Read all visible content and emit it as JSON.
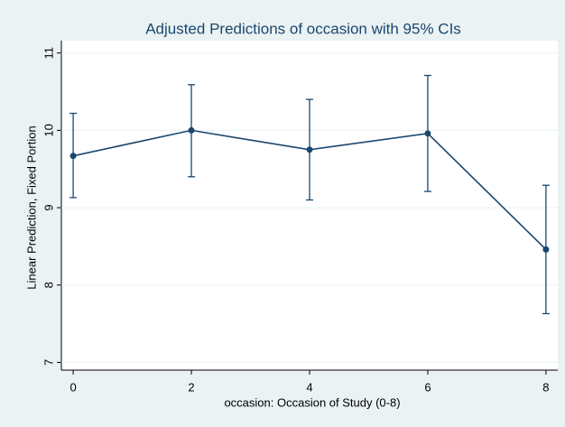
{
  "chart_data": {
    "type": "errorline",
    "title": "Adjusted Predictions of occasion with 95% CIs",
    "x_label": "occasion: Occasion of Study (0-8)",
    "y_label": "Linear Prediction, Fixed Portion",
    "x": [
      0,
      2,
      4,
      6,
      8
    ],
    "values": [
      9.67,
      10.0,
      9.75,
      9.96,
      8.46
    ],
    "ci_low": [
      9.13,
      9.4,
      9.1,
      9.21,
      7.63
    ],
    "ci_high": [
      10.22,
      10.59,
      10.4,
      10.71,
      9.29
    ],
    "color": "#1a476f",
    "xlim": [
      -0.2,
      8.2
    ],
    "xticks": [
      0,
      2,
      4,
      6,
      8
    ],
    "ylim": [
      6.9,
      11.16
    ],
    "yticks": [
      7,
      8,
      9,
      10,
      11
    ],
    "grid": true
  }
}
